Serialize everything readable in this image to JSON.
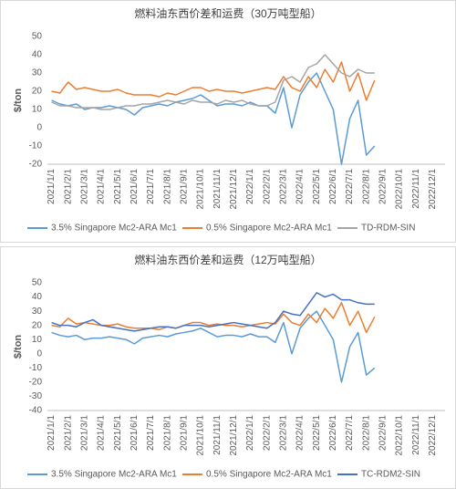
{
  "chart_data": [
    {
      "type": "line",
      "title": "燃料油东西价差和运费（30万吨型船）",
      "ylabel": "$/ton",
      "categories": [
        "2021/1/1",
        null,
        "2021/2/1",
        null,
        "2021/3/1",
        null,
        "2021/4/1",
        null,
        "2021/5/1",
        null,
        "2021/6/1",
        null,
        "2021/7/1",
        null,
        "2021/8/1",
        null,
        "2021/9/1",
        null,
        "2021/10/1",
        null,
        "2021/11/1",
        null,
        "2021/12/1",
        null,
        "2022/1/1",
        null,
        "2022/2/1",
        null,
        "2022/3/1",
        null,
        "2022/4/1",
        null,
        "2022/5/1",
        null,
        "2022/6/1",
        null,
        "2022/7/1",
        null,
        "2022/8/1",
        null,
        "2022/9/1",
        null,
        "2022/10/1",
        null,
        "2022/11/1",
        null,
        "2022/12/1",
        null
      ],
      "ylim": [
        -20,
        50
      ],
      "yticks": [
        -20,
        -10,
        0,
        10,
        20,
        30,
        40,
        50
      ],
      "grid": false,
      "legend": "bottom",
      "series": [
        {
          "name": "3.5% Singapore Mc2-ARA Mc1",
          "color": "#5b9bd5",
          "values": [
            15,
            13,
            12,
            13,
            10,
            11,
            11,
            12,
            11,
            10,
            7,
            11,
            12,
            13,
            12,
            14,
            15,
            16,
            18,
            15,
            12,
            13,
            13,
            12,
            14,
            12,
            12,
            8,
            22,
            0,
            18,
            25,
            30,
            20,
            10,
            -20,
            5,
            15,
            -15,
            -10,
            null,
            null,
            null,
            null,
            null,
            null,
            null,
            null
          ]
        },
        {
          "name": "0.5% Singapore Mc2-ARA Mc1",
          "color": "#ed7d31",
          "values": [
            20,
            19,
            25,
            21,
            22,
            21,
            20,
            20,
            21,
            19,
            18,
            18,
            18,
            17,
            19,
            18,
            20,
            22,
            22,
            20,
            21,
            20,
            20,
            19,
            20,
            21,
            22,
            21,
            28,
            22,
            20,
            28,
            22,
            32,
            25,
            36,
            20,
            30,
            15,
            26,
            null,
            null,
            null,
            null,
            null,
            null,
            null,
            null
          ]
        },
        {
          "name": "TD-RDM-SIN",
          "color": "#a5a5a5",
          "values": [
            14,
            12,
            12,
            11,
            11,
            11,
            10,
            10,
            11,
            12,
            12,
            13,
            13,
            14,
            15,
            14,
            13,
            15,
            14,
            14,
            13,
            15,
            14,
            15,
            13,
            12,
            12,
            14,
            26,
            28,
            25,
            33,
            35,
            40,
            35,
            30,
            28,
            32,
            30,
            30,
            null,
            null,
            null,
            null,
            null,
            null,
            null,
            null
          ]
        }
      ]
    },
    {
      "type": "line",
      "title": "燃料油东西价差和运费（12万吨型船）",
      "ylabel": "$/ton",
      "categories": [
        "2021/1/1",
        null,
        "2021/2/1",
        null,
        "2021/3/1",
        null,
        "2021/4/1",
        null,
        "2021/5/1",
        null,
        "2021/6/1",
        null,
        "2021/7/1",
        null,
        "2021/8/1",
        null,
        "2021/9/1",
        null,
        "2021/10/1",
        null,
        "2021/11/1",
        null,
        "2021/12/1",
        null,
        "2022/1/1",
        null,
        "2022/2/1",
        null,
        "2022/3/1",
        null,
        "2022/4/1",
        null,
        "2022/5/1",
        null,
        "2022/6/1",
        null,
        "2022/7/1",
        null,
        "2022/8/1",
        null,
        "2022/9/1",
        null,
        "2022/10/1",
        null,
        "2022/11/1",
        null,
        "2022/12/1",
        null
      ],
      "ylim": [
        -40,
        50
      ],
      "yticks": [
        -40,
        -30,
        -20,
        -10,
        0,
        10,
        20,
        30,
        40,
        50
      ],
      "grid": false,
      "legend": "bottom",
      "series": [
        {
          "name": "3.5% Singapore Mc2-ARA Mc1",
          "color": "#5b9bd5",
          "values": [
            15,
            13,
            12,
            13,
            10,
            11,
            11,
            12,
            11,
            10,
            7,
            11,
            12,
            13,
            12,
            14,
            15,
            16,
            18,
            15,
            12,
            13,
            13,
            12,
            14,
            12,
            12,
            8,
            22,
            0,
            18,
            25,
            30,
            20,
            10,
            -20,
            5,
            15,
            -15,
            -10,
            null,
            null,
            null,
            null,
            null,
            null,
            null,
            null
          ]
        },
        {
          "name": "0.5% Singapore Mc2-ARA Mc1",
          "color": "#ed7d31",
          "values": [
            20,
            19,
            25,
            21,
            22,
            21,
            20,
            20,
            21,
            19,
            18,
            18,
            18,
            17,
            19,
            18,
            20,
            22,
            22,
            20,
            21,
            20,
            20,
            19,
            20,
            21,
            22,
            21,
            28,
            22,
            20,
            28,
            22,
            32,
            25,
            36,
            20,
            30,
            15,
            26,
            null,
            null,
            null,
            null,
            null,
            null,
            null,
            null
          ]
        },
        {
          "name": "TC-RDM2-SIN",
          "color": "#4472c4",
          "values": [
            22,
            20,
            20,
            19,
            22,
            24,
            20,
            19,
            18,
            17,
            16,
            17,
            18,
            19,
            19,
            18,
            20,
            20,
            20,
            19,
            20,
            21,
            22,
            21,
            20,
            19,
            18,
            22,
            30,
            28,
            27,
            35,
            43,
            40,
            42,
            38,
            38,
            36,
            35,
            35,
            null,
            null,
            null,
            null,
            null,
            null,
            null,
            null
          ]
        }
      ]
    }
  ]
}
